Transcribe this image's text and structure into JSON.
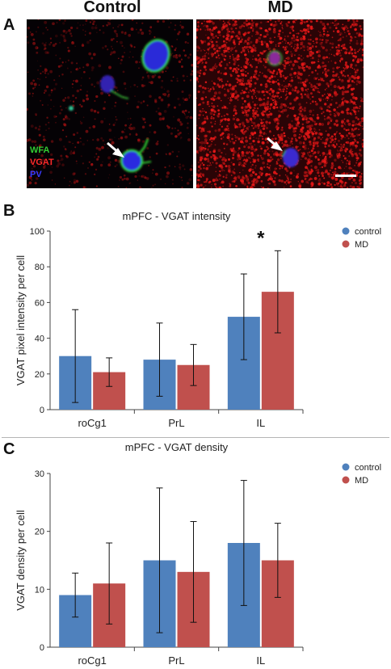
{
  "panel_a": {
    "letter": "A",
    "left_title": "Control",
    "right_title": "MD",
    "stains": [
      {
        "label": "WFA",
        "color": "#33cc33"
      },
      {
        "label": "VGAT",
        "color": "#ff2a2a"
      },
      {
        "label": "PV",
        "color": "#3a3aff"
      }
    ]
  },
  "colors": {
    "control": "#4f81bd",
    "md": "#c0504d"
  },
  "chart_data": [
    {
      "panel": "B",
      "type": "bar",
      "title": "mPFC - VGAT intensity",
      "ylabel": "VGAT pixel intensity per cell",
      "xlabel": "",
      "categories": [
        "roCg1",
        "PrL",
        "IL"
      ],
      "ylim": [
        0,
        100
      ],
      "yticks": [
        "0",
        "20",
        "40",
        "60",
        "80",
        "100"
      ],
      "series": [
        {
          "name": "control",
          "values": [
            30,
            28,
            52
          ],
          "error": [
            26,
            20.5,
            24
          ]
        },
        {
          "name": "MD",
          "values": [
            21,
            25,
            66
          ],
          "error": [
            8,
            11.5,
            23
          ]
        }
      ],
      "annotation": "*",
      "legend_position": "top-right"
    },
    {
      "panel": "C",
      "type": "bar",
      "title": "mPFC - VGAT density",
      "ylabel": "VGAT density per cell",
      "xlabel": "",
      "categories": [
        "roCg1",
        "PrL",
        "IL"
      ],
      "ylim": [
        0,
        30
      ],
      "yticks": [
        "0",
        "10",
        "20",
        "30"
      ],
      "series": [
        {
          "name": "control",
          "values": [
            9,
            15,
            18
          ],
          "error": [
            3.8,
            12.5,
            10.8
          ]
        },
        {
          "name": "MD",
          "values": [
            11,
            13,
            15
          ],
          "error": [
            7,
            8.7,
            6.4
          ]
        }
      ],
      "annotation": "",
      "legend_position": "top-right"
    }
  ]
}
